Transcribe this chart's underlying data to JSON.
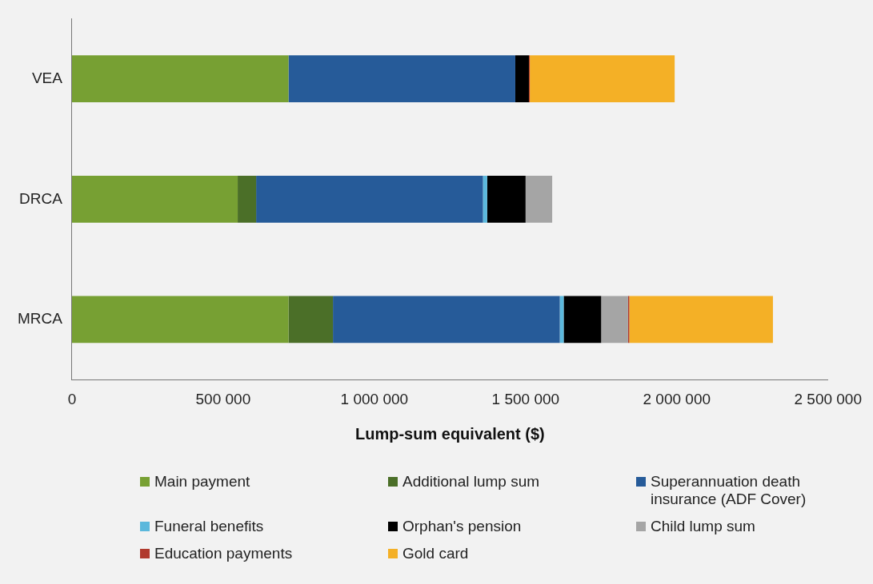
{
  "chart_data": {
    "type": "bar",
    "orientation": "horizontal",
    "stacked": true,
    "xlabel": "Lump-sum equivalent ($)",
    "categories": [
      "VEA",
      "DRCA",
      "MRCA"
    ],
    "xlim": [
      0,
      2500000
    ],
    "xticks": [
      0,
      {
        "value": 500000,
        "label": "500 000"
      },
      {
        "value": 1000000,
        "label": "1 000 000"
      },
      {
        "value": 1500000,
        "label": "1 500 000"
      },
      {
        "value": 2000000,
        "label": "2 000 000"
      },
      {
        "value": 2500000,
        "label": "2 500 000"
      }
    ],
    "grid": false,
    "legend": "bottom",
    "series": [
      {
        "name": "Main payment",
        "color": "#77a033",
        "values": [
          716000,
          548000,
          716000
        ]
      },
      {
        "name": "Additional lump sum",
        "color": "#4b6f28",
        "values": [
          0,
          61000,
          147000
        ]
      },
      {
        "name": "Superannuation death insurance (ADF Cover)",
        "color": "#265b99",
        "values": [
          750000,
          750000,
          750000
        ]
      },
      {
        "name": "Funeral benefits",
        "color": "#5bb8dc",
        "values": [
          0,
          14000,
          13000
        ]
      },
      {
        "name": "Orphan's pension",
        "color": "#000000",
        "values": [
          45000,
          127000,
          124000
        ]
      },
      {
        "name": "Child lump sum",
        "color": "#a5a5a5",
        "values": [
          0,
          88000,
          89000
        ]
      },
      {
        "name": "Education payments",
        "color": "#b03a2e",
        "values": [
          3000,
          0,
          4000
        ]
      },
      {
        "name": "Gold card",
        "color": "#f4b026",
        "values": [
          479000,
          0,
          475000
        ]
      }
    ]
  }
}
